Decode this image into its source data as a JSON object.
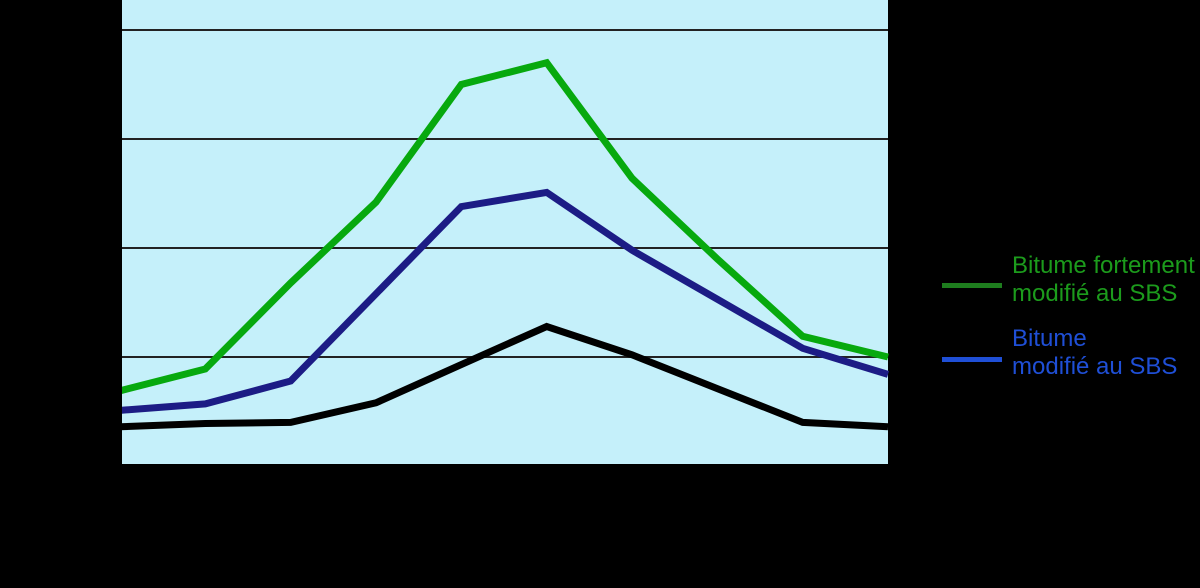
{
  "colors": {
    "canvas_background": "#000000",
    "plot_bg": "#C5F0FA",
    "grid": "#222222",
    "axis": "#000000",
    "series_green": "#07A90E",
    "series_blue": "#1C1C85",
    "series_black": "#000000",
    "legend_green_text": "#1C9B1C",
    "legend_green_swatch": "#1E7D1E",
    "legend_blue_text": "#1F4FD6",
    "legend_blue_swatch": "#1F4FD6"
  },
  "legend": {
    "entries": [
      {
        "line1": "Bitume fortement",
        "line2": "modifié au SBS",
        "text_color": "#1C9B1C",
        "swatch_color": "#1E7D1E"
      },
      {
        "line1": "Bitume",
        "line2": "modifié au SBS",
        "text_color": "#1F4FD6",
        "swatch_color": "#1F4FD6"
      }
    ]
  },
  "chart_data": {
    "type": "line",
    "x_index": [
      1,
      2,
      3,
      4,
      5,
      6,
      7,
      8,
      9,
      10
    ],
    "x_tick_labels_visible": false,
    "y_tick_labels_visible": false,
    "y_unit": "gridline intervals (axis labels not visible in image)",
    "ylim": [
      0,
      4.28
    ],
    "y_gridlines": [
      1,
      2,
      3,
      4
    ],
    "grid": "horizontal only",
    "legend_position": "right, outside plot",
    "series": [
      {
        "id": "green",
        "legend_label": "Bitume fortement modifié au SBS",
        "color": "#07A90E",
        "values": [
          0.69,
          0.89,
          1.68,
          2.42,
          3.5,
          3.7,
          2.64,
          1.9,
          1.19,
          1.0
        ]
      },
      {
        "id": "blue",
        "legend_label": "Bitume modifié au SBS",
        "color": "#1C1C85",
        "values": [
          0.51,
          0.57,
          0.78,
          1.58,
          2.38,
          2.51,
          1.98,
          1.53,
          1.08,
          0.84
        ]
      },
      {
        "id": "black",
        "legend_label": null,
        "color": "#000000",
        "values": [
          0.36,
          0.39,
          0.4,
          0.58,
          0.93,
          1.28,
          1.02,
          0.71,
          0.4,
          0.36
        ]
      }
    ]
  }
}
